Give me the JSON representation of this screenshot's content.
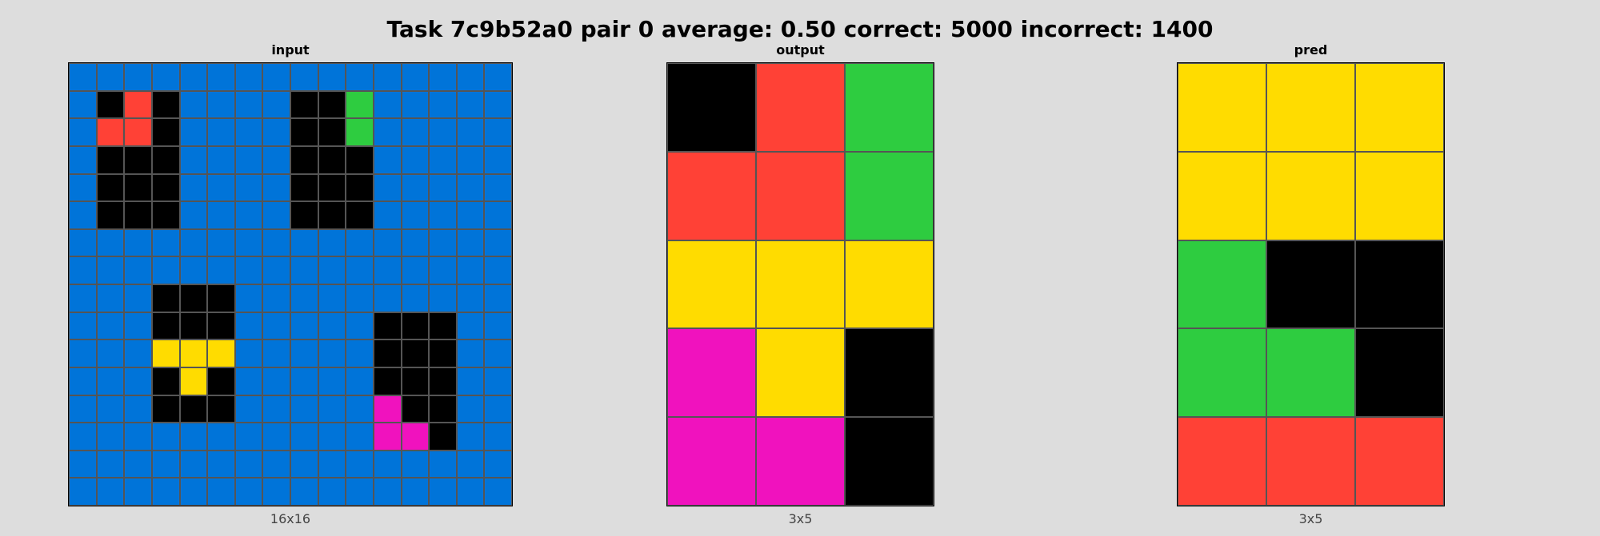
{
  "title": "Task 7c9b52a0 pair 0 average: 0.50 correct: 5000 incorrect: 1400",
  "palette": {
    "0": "#000000",
    "1": "#0074D9",
    "2": "#FF4136",
    "3": "#2ECC40",
    "4": "#FFDC00",
    "6": "#F012BE"
  },
  "panels": [
    {
      "key": "input",
      "label": "input",
      "dims": "16x16",
      "grid": [
        [
          1,
          1,
          1,
          1,
          1,
          1,
          1,
          1,
          1,
          1,
          1,
          1,
          1,
          1,
          1,
          1
        ],
        [
          1,
          0,
          2,
          0,
          1,
          1,
          1,
          1,
          0,
          0,
          3,
          1,
          1,
          1,
          1,
          1
        ],
        [
          1,
          2,
          2,
          0,
          1,
          1,
          1,
          1,
          0,
          0,
          3,
          1,
          1,
          1,
          1,
          1
        ],
        [
          1,
          0,
          0,
          0,
          1,
          1,
          1,
          1,
          0,
          0,
          0,
          1,
          1,
          1,
          1,
          1
        ],
        [
          1,
          0,
          0,
          0,
          1,
          1,
          1,
          1,
          0,
          0,
          0,
          1,
          1,
          1,
          1,
          1
        ],
        [
          1,
          0,
          0,
          0,
          1,
          1,
          1,
          1,
          0,
          0,
          0,
          1,
          1,
          1,
          1,
          1
        ],
        [
          1,
          1,
          1,
          1,
          1,
          1,
          1,
          1,
          1,
          1,
          1,
          1,
          1,
          1,
          1,
          1
        ],
        [
          1,
          1,
          1,
          1,
          1,
          1,
          1,
          1,
          1,
          1,
          1,
          1,
          1,
          1,
          1,
          1
        ],
        [
          1,
          1,
          1,
          0,
          0,
          0,
          1,
          1,
          1,
          1,
          1,
          1,
          1,
          1,
          1,
          1
        ],
        [
          1,
          1,
          1,
          0,
          0,
          0,
          1,
          1,
          1,
          1,
          1,
          0,
          0,
          0,
          1,
          1
        ],
        [
          1,
          1,
          1,
          4,
          4,
          4,
          1,
          1,
          1,
          1,
          1,
          0,
          0,
          0,
          1,
          1
        ],
        [
          1,
          1,
          1,
          0,
          4,
          0,
          1,
          1,
          1,
          1,
          1,
          0,
          0,
          0,
          1,
          1
        ],
        [
          1,
          1,
          1,
          0,
          0,
          0,
          1,
          1,
          1,
          1,
          1,
          6,
          0,
          0,
          1,
          1
        ],
        [
          1,
          1,
          1,
          1,
          1,
          1,
          1,
          1,
          1,
          1,
          1,
          6,
          6,
          0,
          1,
          1
        ],
        [
          1,
          1,
          1,
          1,
          1,
          1,
          1,
          1,
          1,
          1,
          1,
          1,
          1,
          1,
          1,
          1
        ],
        [
          1,
          1,
          1,
          1,
          1,
          1,
          1,
          1,
          1,
          1,
          1,
          1,
          1,
          1,
          1,
          1
        ]
      ]
    },
    {
      "key": "output",
      "label": "output",
      "dims": "3x5",
      "grid": [
        [
          0,
          2,
          3
        ],
        [
          2,
          2,
          3
        ],
        [
          4,
          4,
          4
        ],
        [
          6,
          4,
          0
        ],
        [
          6,
          6,
          0
        ]
      ]
    },
    {
      "key": "pred",
      "label": "pred",
      "dims": "3x5",
      "grid": [
        [
          4,
          4,
          4
        ],
        [
          4,
          4,
          4
        ],
        [
          3,
          0,
          0
        ],
        [
          3,
          3,
          0
        ],
        [
          2,
          2,
          2
        ]
      ]
    }
  ]
}
